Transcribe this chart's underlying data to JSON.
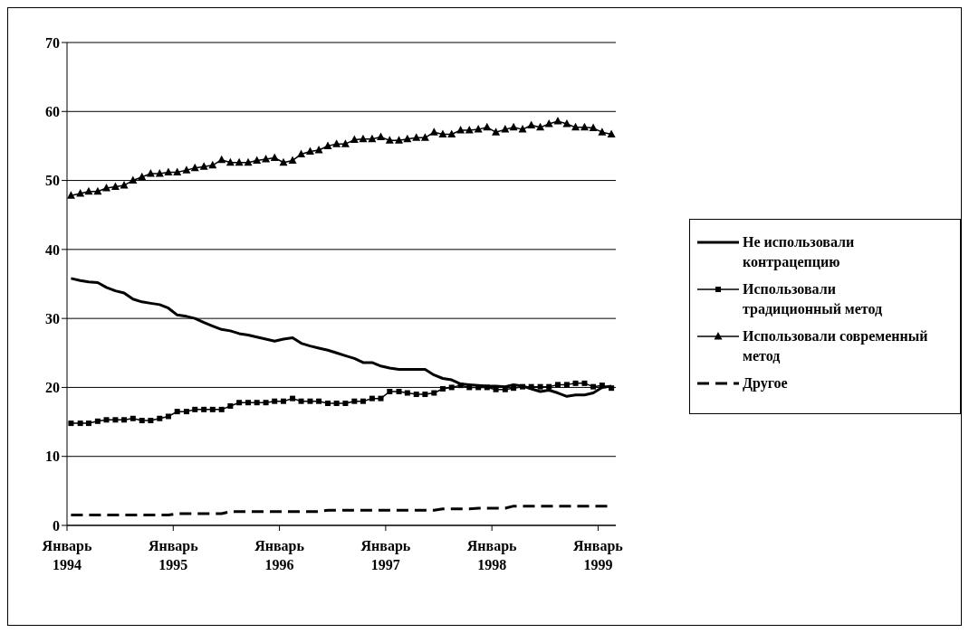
{
  "chart_data": {
    "type": "line",
    "x": [
      "1994-01-15",
      "1994-02-15",
      "1994-03-15",
      "1994-04-15",
      "1994-05-15",
      "1994-06-15",
      "1994-07-15",
      "1994-08-15",
      "1994-09-15",
      "1994-10-15",
      "1994-11-15",
      "1994-12-15",
      "1995-01-15",
      "1995-02-15",
      "1995-03-15",
      "1995-04-15",
      "1995-05-15",
      "1995-06-15",
      "1995-07-15",
      "1995-08-15",
      "1995-09-15",
      "1995-10-15",
      "1995-11-15",
      "1995-12-15",
      "1996-01-15",
      "1996-02-15",
      "1996-03-15",
      "1996-04-15",
      "1996-05-15",
      "1996-06-15",
      "1996-07-15",
      "1996-08-15",
      "1996-09-15",
      "1996-10-15",
      "1996-11-15",
      "1996-12-15",
      "1997-01-15",
      "1997-02-15",
      "1997-03-15",
      "1997-04-15",
      "1997-05-15",
      "1997-06-15",
      "1997-07-15",
      "1997-08-15",
      "1997-09-15",
      "1997-10-15",
      "1997-11-15",
      "1997-12-15",
      "1998-01-15",
      "1998-02-15",
      "1998-03-15",
      "1998-04-15",
      "1998-05-15",
      "1998-06-15",
      "1998-07-15",
      "1998-08-15",
      "1998-09-15",
      "1998-10-15",
      "1998-11-15",
      "1998-12-15",
      "1999-01-15",
      "1999-02-15"
    ],
    "series": [
      {
        "name": "Не использовали контрацепцию",
        "color": "#000000",
        "marker": "none",
        "line_style": "solid",
        "values": [
          35.8,
          35.5,
          35.3,
          35.2,
          34.5,
          34.0,
          33.7,
          32.8,
          32.4,
          32.2,
          32.0,
          31.5,
          30.5,
          30.3,
          30.0,
          29.4,
          28.9,
          28.4,
          28.2,
          27.8,
          27.6,
          27.3,
          27.0,
          26.7,
          27.0,
          27.2,
          26.4,
          26.0,
          25.7,
          25.4,
          25.0,
          24.6,
          24.2,
          23.6,
          23.6,
          23.1,
          22.8,
          22.6,
          22.6,
          22.6,
          22.6,
          21.8,
          21.3,
          21.1,
          20.5,
          20.4,
          20.3,
          20.2,
          20.2,
          20.1,
          20.4,
          20.2,
          19.8,
          19.4,
          19.6,
          19.2,
          18.7,
          18.9,
          18.9,
          19.2,
          20.0,
          20.2
        ]
      },
      {
        "name": "Использовали традиционный метод",
        "color": "#000000",
        "marker": "square",
        "line_style": "solid",
        "values": [
          14.8,
          14.8,
          14.8,
          15.1,
          15.3,
          15.3,
          15.3,
          15.5,
          15.2,
          15.2,
          15.5,
          15.8,
          16.5,
          16.5,
          16.8,
          16.8,
          16.8,
          16.8,
          17.3,
          17.8,
          17.8,
          17.8,
          17.8,
          18.0,
          18.0,
          18.4,
          18.0,
          18.0,
          18.0,
          17.7,
          17.7,
          17.7,
          18.0,
          18.0,
          18.4,
          18.4,
          19.4,
          19.4,
          19.2,
          19.0,
          19.0,
          19.2,
          19.8,
          20.0,
          20.3,
          20.0,
          20.0,
          20.0,
          19.7,
          19.7,
          19.9,
          20.1,
          20.1,
          20.1,
          20.1,
          20.4,
          20.4,
          20.6,
          20.6,
          20.1,
          20.3,
          19.9
        ]
      },
      {
        "name": "Использовали современный метод",
        "color": "#000000",
        "marker": "triangle",
        "line_style": "solid",
        "values": [
          47.8,
          48.1,
          48.4,
          48.4,
          48.9,
          49.1,
          49.3,
          50.0,
          50.5,
          51.0,
          51.0,
          51.2,
          51.2,
          51.5,
          51.8,
          52.0,
          52.2,
          53.0,
          52.6,
          52.6,
          52.6,
          52.9,
          53.1,
          53.3,
          52.6,
          52.9,
          53.8,
          54.2,
          54.4,
          55.0,
          55.3,
          55.3,
          55.9,
          56.0,
          56.0,
          56.3,
          55.8,
          55.8,
          56.0,
          56.2,
          56.2,
          57.0,
          56.7,
          56.7,
          57.3,
          57.3,
          57.4,
          57.7,
          57.0,
          57.4,
          57.7,
          57.4,
          58.0,
          57.7,
          58.2,
          58.6,
          58.2,
          57.7,
          57.7,
          57.6,
          57.0,
          56.7
        ]
      },
      {
        "name": "Другое",
        "color": "#000000",
        "marker": "none",
        "line_style": "dashed",
        "values": [
          1.5,
          1.5,
          1.5,
          1.5,
          1.5,
          1.5,
          1.5,
          1.5,
          1.5,
          1.5,
          1.5,
          1.5,
          1.7,
          1.7,
          1.7,
          1.7,
          1.7,
          1.7,
          2.0,
          2.0,
          2.0,
          2.0,
          2.0,
          2.0,
          2.0,
          2.0,
          2.0,
          2.0,
          2.0,
          2.2,
          2.2,
          2.2,
          2.2,
          2.2,
          2.2,
          2.2,
          2.2,
          2.2,
          2.2,
          2.2,
          2.2,
          2.2,
          2.4,
          2.4,
          2.4,
          2.4,
          2.5,
          2.5,
          2.5,
          2.5,
          2.8,
          2.8,
          2.8,
          2.8,
          2.8,
          2.8,
          2.8,
          2.8,
          2.8,
          2.8,
          2.8,
          2.8
        ]
      }
    ],
    "xlim": [
      "1994-01-01",
      "1999-03-01"
    ],
    "xticks": [
      {
        "value": "1994-01-01",
        "label": "Январь 1994"
      },
      {
        "value": "1995-01-01",
        "label": "Январь 1995"
      },
      {
        "value": "1996-01-01",
        "label": "Январь 1996"
      },
      {
        "value": "1997-01-01",
        "label": "Январь 1997"
      },
      {
        "value": "1998-01-01",
        "label": "Январь 1998"
      },
      {
        "value": "1999-01-01",
        "label": "Январь 1999"
      }
    ],
    "ylim": [
      0,
      70
    ],
    "yticks": [
      0,
      10,
      20,
      30,
      40,
      50,
      60,
      70
    ],
    "grid": "y",
    "legend": "right"
  }
}
